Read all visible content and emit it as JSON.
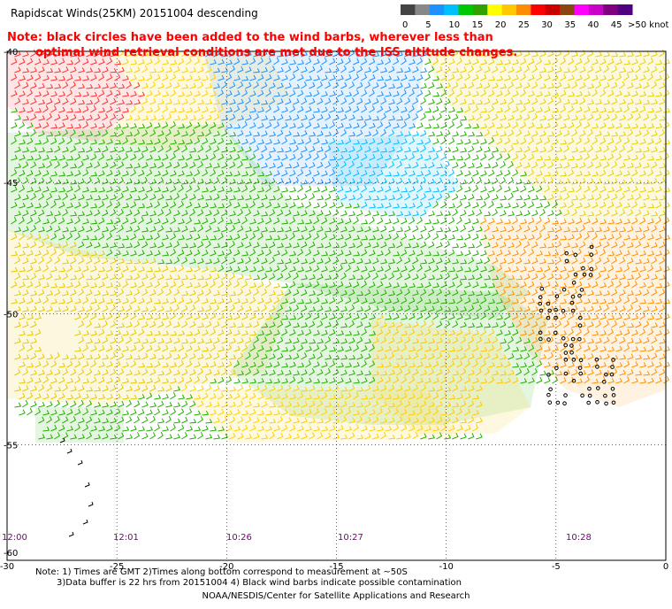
{
  "title": "Rapidscat Winds(25KM) 20151004 descending",
  "note_line1": "Note: black circles have been added to the wind barbs, wherever less than",
  "note_line2": "optimal wind retrieval conditions are met due to the ISS altitude changes.",
  "colorbar": {
    "labels": [
      "0",
      "5",
      "10",
      "15",
      "20",
      "25",
      "30",
      "35",
      "40",
      "45",
      ">50 knots"
    ],
    "colors": [
      "#444444",
      "#888888",
      "#1e90ff",
      "#00bfff",
      "#00c800",
      "#32a000",
      "#ffff00",
      "#ffc800",
      "#ff8c00",
      "#ff0000",
      "#c80000",
      "#8b4513",
      "#ff00ff",
      "#c800c8",
      "#7f007f",
      "#500080"
    ]
  },
  "axes": {
    "x_ticks": [
      "-30",
      "-25",
      "-20",
      "-15",
      "-10",
      "-5",
      "0"
    ],
    "y_ticks": [
      "-40",
      "-45",
      "-50",
      "-55",
      "-60"
    ]
  },
  "pass_times": [
    "12:00",
    "12:01",
    "10:26",
    "10:27",
    "10:28"
  ],
  "footnote_line1": "Note: 1) Times are GMT 2)Times along bottom correspond to measurement at ~50S",
  "footnote_line2": "3)Data buffer is 22 hrs from 20151004 4) Black wind barbs indicate possible contamination",
  "credit": "NOAA/NESDIS/Center for Satellite Applications and Research"
}
